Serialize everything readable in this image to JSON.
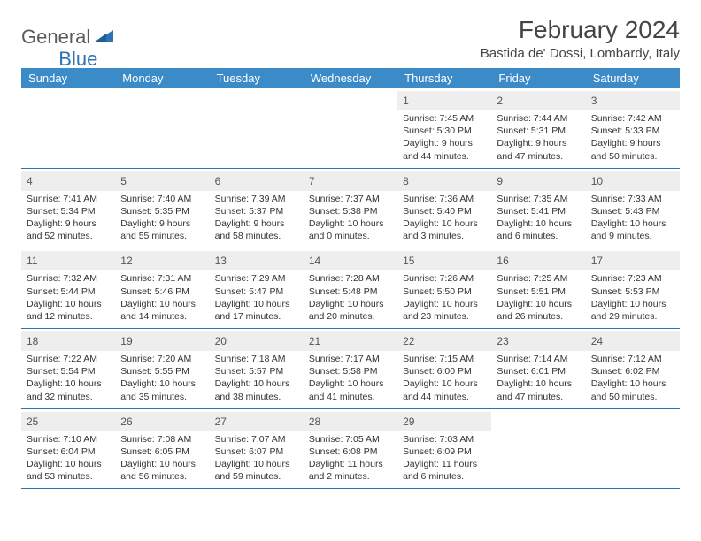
{
  "brand": {
    "part1": "General",
    "part2": "Blue"
  },
  "title": "February 2024",
  "location": "Bastida de' Dossi, Lombardy, Italy",
  "colors": {
    "header_bg": "#3b8bc9",
    "header_text": "#ffffff",
    "rule": "#2e74b5",
    "daynum_bg": "#eeeeee",
    "logo_gray": "#5a5a5a",
    "logo_blue": "#2e74b5",
    "body_text": "#333333"
  },
  "weekdays": [
    "Sunday",
    "Monday",
    "Tuesday",
    "Wednesday",
    "Thursday",
    "Friday",
    "Saturday"
  ],
  "weeks": [
    [
      {
        "empty": true
      },
      {
        "empty": true
      },
      {
        "empty": true
      },
      {
        "empty": true
      },
      {
        "num": "1",
        "sunrise": "Sunrise: 7:45 AM",
        "sunset": "Sunset: 5:30 PM",
        "day1": "Daylight: 9 hours",
        "day2": "and 44 minutes."
      },
      {
        "num": "2",
        "sunrise": "Sunrise: 7:44 AM",
        "sunset": "Sunset: 5:31 PM",
        "day1": "Daylight: 9 hours",
        "day2": "and 47 minutes."
      },
      {
        "num": "3",
        "sunrise": "Sunrise: 7:42 AM",
        "sunset": "Sunset: 5:33 PM",
        "day1": "Daylight: 9 hours",
        "day2": "and 50 minutes."
      }
    ],
    [
      {
        "num": "4",
        "sunrise": "Sunrise: 7:41 AM",
        "sunset": "Sunset: 5:34 PM",
        "day1": "Daylight: 9 hours",
        "day2": "and 52 minutes."
      },
      {
        "num": "5",
        "sunrise": "Sunrise: 7:40 AM",
        "sunset": "Sunset: 5:35 PM",
        "day1": "Daylight: 9 hours",
        "day2": "and 55 minutes."
      },
      {
        "num": "6",
        "sunrise": "Sunrise: 7:39 AM",
        "sunset": "Sunset: 5:37 PM",
        "day1": "Daylight: 9 hours",
        "day2": "and 58 minutes."
      },
      {
        "num": "7",
        "sunrise": "Sunrise: 7:37 AM",
        "sunset": "Sunset: 5:38 PM",
        "day1": "Daylight: 10 hours",
        "day2": "and 0 minutes."
      },
      {
        "num": "8",
        "sunrise": "Sunrise: 7:36 AM",
        "sunset": "Sunset: 5:40 PM",
        "day1": "Daylight: 10 hours",
        "day2": "and 3 minutes."
      },
      {
        "num": "9",
        "sunrise": "Sunrise: 7:35 AM",
        "sunset": "Sunset: 5:41 PM",
        "day1": "Daylight: 10 hours",
        "day2": "and 6 minutes."
      },
      {
        "num": "10",
        "sunrise": "Sunrise: 7:33 AM",
        "sunset": "Sunset: 5:43 PM",
        "day1": "Daylight: 10 hours",
        "day2": "and 9 minutes."
      }
    ],
    [
      {
        "num": "11",
        "sunrise": "Sunrise: 7:32 AM",
        "sunset": "Sunset: 5:44 PM",
        "day1": "Daylight: 10 hours",
        "day2": "and 12 minutes."
      },
      {
        "num": "12",
        "sunrise": "Sunrise: 7:31 AM",
        "sunset": "Sunset: 5:46 PM",
        "day1": "Daylight: 10 hours",
        "day2": "and 14 minutes."
      },
      {
        "num": "13",
        "sunrise": "Sunrise: 7:29 AM",
        "sunset": "Sunset: 5:47 PM",
        "day1": "Daylight: 10 hours",
        "day2": "and 17 minutes."
      },
      {
        "num": "14",
        "sunrise": "Sunrise: 7:28 AM",
        "sunset": "Sunset: 5:48 PM",
        "day1": "Daylight: 10 hours",
        "day2": "and 20 minutes."
      },
      {
        "num": "15",
        "sunrise": "Sunrise: 7:26 AM",
        "sunset": "Sunset: 5:50 PM",
        "day1": "Daylight: 10 hours",
        "day2": "and 23 minutes."
      },
      {
        "num": "16",
        "sunrise": "Sunrise: 7:25 AM",
        "sunset": "Sunset: 5:51 PM",
        "day1": "Daylight: 10 hours",
        "day2": "and 26 minutes."
      },
      {
        "num": "17",
        "sunrise": "Sunrise: 7:23 AM",
        "sunset": "Sunset: 5:53 PM",
        "day1": "Daylight: 10 hours",
        "day2": "and 29 minutes."
      }
    ],
    [
      {
        "num": "18",
        "sunrise": "Sunrise: 7:22 AM",
        "sunset": "Sunset: 5:54 PM",
        "day1": "Daylight: 10 hours",
        "day2": "and 32 minutes."
      },
      {
        "num": "19",
        "sunrise": "Sunrise: 7:20 AM",
        "sunset": "Sunset: 5:55 PM",
        "day1": "Daylight: 10 hours",
        "day2": "and 35 minutes."
      },
      {
        "num": "20",
        "sunrise": "Sunrise: 7:18 AM",
        "sunset": "Sunset: 5:57 PM",
        "day1": "Daylight: 10 hours",
        "day2": "and 38 minutes."
      },
      {
        "num": "21",
        "sunrise": "Sunrise: 7:17 AM",
        "sunset": "Sunset: 5:58 PM",
        "day1": "Daylight: 10 hours",
        "day2": "and 41 minutes."
      },
      {
        "num": "22",
        "sunrise": "Sunrise: 7:15 AM",
        "sunset": "Sunset: 6:00 PM",
        "day1": "Daylight: 10 hours",
        "day2": "and 44 minutes."
      },
      {
        "num": "23",
        "sunrise": "Sunrise: 7:14 AM",
        "sunset": "Sunset: 6:01 PM",
        "day1": "Daylight: 10 hours",
        "day2": "and 47 minutes."
      },
      {
        "num": "24",
        "sunrise": "Sunrise: 7:12 AM",
        "sunset": "Sunset: 6:02 PM",
        "day1": "Daylight: 10 hours",
        "day2": "and 50 minutes."
      }
    ],
    [
      {
        "num": "25",
        "sunrise": "Sunrise: 7:10 AM",
        "sunset": "Sunset: 6:04 PM",
        "day1": "Daylight: 10 hours",
        "day2": "and 53 minutes."
      },
      {
        "num": "26",
        "sunrise": "Sunrise: 7:08 AM",
        "sunset": "Sunset: 6:05 PM",
        "day1": "Daylight: 10 hours",
        "day2": "and 56 minutes."
      },
      {
        "num": "27",
        "sunrise": "Sunrise: 7:07 AM",
        "sunset": "Sunset: 6:07 PM",
        "day1": "Daylight: 10 hours",
        "day2": "and 59 minutes."
      },
      {
        "num": "28",
        "sunrise": "Sunrise: 7:05 AM",
        "sunset": "Sunset: 6:08 PM",
        "day1": "Daylight: 11 hours",
        "day2": "and 2 minutes."
      },
      {
        "num": "29",
        "sunrise": "Sunrise: 7:03 AM",
        "sunset": "Sunset: 6:09 PM",
        "day1": "Daylight: 11 hours",
        "day2": "and 6 minutes."
      },
      {
        "empty": true
      },
      {
        "empty": true
      }
    ]
  ]
}
